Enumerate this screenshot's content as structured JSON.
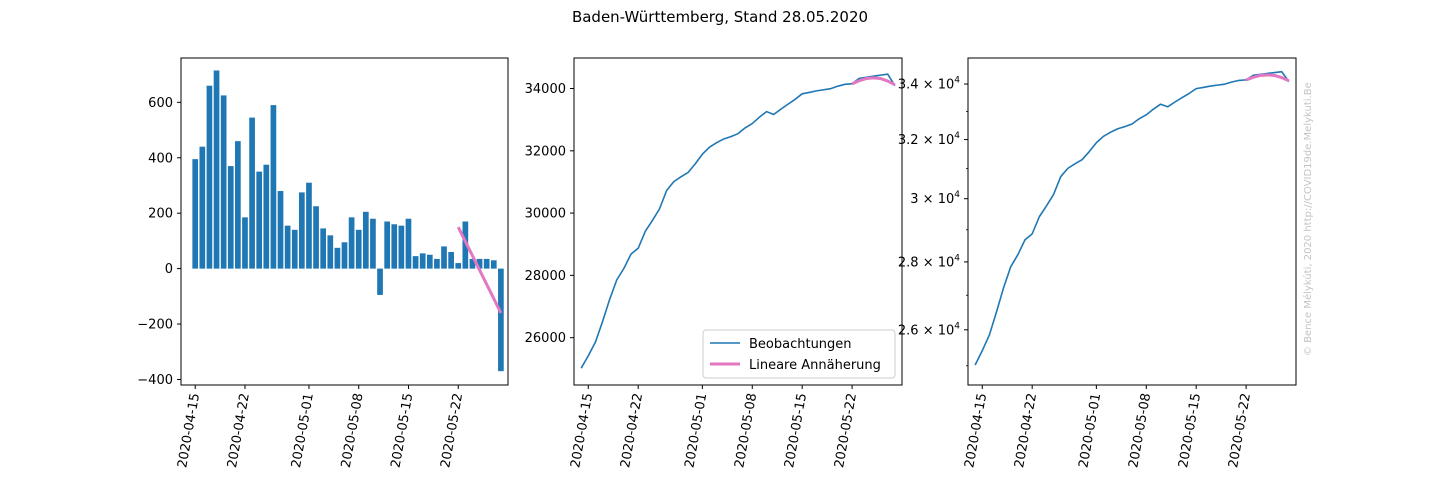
{
  "figure": {
    "title": "Baden-Württemberg, Stand 28.05.2020",
    "watermark": "© Bence Mélykúti, 2020  http://COVID19de.Melykuti.Be",
    "colors": {
      "bar": "#1f77b4",
      "line": "#1f77b4",
      "fit": "#e377c2",
      "axis": "#000000"
    }
  },
  "chart_data": [
    {
      "type": "bar",
      "x": [
        "2020-04-15",
        "2020-04-16",
        "2020-04-17",
        "2020-04-18",
        "2020-04-19",
        "2020-04-20",
        "2020-04-21",
        "2020-04-22",
        "2020-04-23",
        "2020-04-24",
        "2020-04-25",
        "2020-04-26",
        "2020-04-27",
        "2020-04-28",
        "2020-04-29",
        "2020-04-30",
        "2020-05-01",
        "2020-05-02",
        "2020-05-03",
        "2020-05-04",
        "2020-05-05",
        "2020-05-06",
        "2020-05-07",
        "2020-05-08",
        "2020-05-09",
        "2020-05-10",
        "2020-05-11",
        "2020-05-12",
        "2020-05-13",
        "2020-05-14",
        "2020-05-15",
        "2020-05-16",
        "2020-05-17",
        "2020-05-18",
        "2020-05-19",
        "2020-05-20",
        "2020-05-21",
        "2020-05-22",
        "2020-05-23",
        "2020-05-24",
        "2020-05-25",
        "2020-05-26",
        "2020-05-27",
        "2020-05-28"
      ],
      "values": [
        395,
        440,
        660,
        715,
        625,
        370,
        460,
        185,
        545,
        350,
        375,
        590,
        280,
        155,
        140,
        275,
        310,
        225,
        145,
        120,
        75,
        95,
        185,
        140,
        205,
        180,
        -95,
        170,
        160,
        155,
        180,
        45,
        55,
        50,
        35,
        80,
        60,
        20,
        170,
        35,
        35,
        35,
        30,
        -370
      ],
      "fit": {
        "name": "Lineare Annäherung",
        "x": [
          "2020-05-22",
          "2020-05-28"
        ],
        "y": [
          150,
          -160
        ]
      },
      "ylim": [
        -420,
        760
      ],
      "yticks": [
        -400,
        -200,
        0,
        200,
        400,
        600
      ],
      "xlim": [
        "2020-04-13",
        "2020-05-29"
      ],
      "xticks": [
        "2020-04-15",
        "2020-04-22",
        "2020-05-01",
        "2020-05-08",
        "2020-05-15",
        "2020-05-22"
      ],
      "grid": false
    },
    {
      "type": "line",
      "series": [
        {
          "name": "Beobachtungen",
          "x": [
            "2020-04-14",
            "2020-04-15",
            "2020-04-16",
            "2020-04-17",
            "2020-04-18",
            "2020-04-19",
            "2020-04-20",
            "2020-04-21",
            "2020-04-22",
            "2020-04-23",
            "2020-04-24",
            "2020-04-25",
            "2020-04-26",
            "2020-04-27",
            "2020-04-28",
            "2020-04-29",
            "2020-04-30",
            "2020-05-01",
            "2020-05-02",
            "2020-05-03",
            "2020-05-04",
            "2020-05-05",
            "2020-05-06",
            "2020-05-07",
            "2020-05-08",
            "2020-05-09",
            "2020-05-10",
            "2020-05-11",
            "2020-05-12",
            "2020-05-13",
            "2020-05-14",
            "2020-05-15",
            "2020-05-16",
            "2020-05-17",
            "2020-05-18",
            "2020-05-19",
            "2020-05-20",
            "2020-05-21",
            "2020-05-22",
            "2020-05-23",
            "2020-05-24",
            "2020-05-25",
            "2020-05-26",
            "2020-05-27",
            "2020-05-28"
          ],
          "values": [
            25020,
            25415,
            25855,
            26515,
            27230,
            27855,
            28225,
            28685,
            28870,
            29415,
            29765,
            30140,
            30730,
            31010,
            31165,
            31305,
            31580,
            31890,
            32115,
            32260,
            32380,
            32455,
            32550,
            32735,
            32875,
            33080,
            33260,
            33165,
            33335,
            33495,
            33650,
            33830,
            33875,
            33925,
            33960,
            33995,
            34075,
            34135,
            34155,
            34325,
            34360,
            34395,
            34430,
            34460,
            34090
          ]
        },
        {
          "name": "Lineare Annäherung",
          "x": [
            "2020-05-22",
            "2020-05-23",
            "2020-05-24",
            "2020-05-25",
            "2020-05-26",
            "2020-05-27",
            "2020-05-28"
          ],
          "values": [
            34150,
            34250,
            34320,
            34340,
            34320,
            34240,
            34120
          ]
        }
      ],
      "ylim": [
        24480,
        34980
      ],
      "yticks": [
        26000,
        28000,
        30000,
        32000,
        34000
      ],
      "xlim": [
        "2020-04-13",
        "2020-05-29"
      ],
      "xticks": [
        "2020-04-15",
        "2020-04-22",
        "2020-05-01",
        "2020-05-08",
        "2020-05-15",
        "2020-05-22"
      ],
      "legend": "lower-right",
      "grid": false
    },
    {
      "type": "line",
      "yscale": "log",
      "series": [
        {
          "name": "Beobachtungen",
          "x": [
            "2020-04-14",
            "2020-04-15",
            "2020-04-16",
            "2020-04-17",
            "2020-04-18",
            "2020-04-19",
            "2020-04-20",
            "2020-04-21",
            "2020-04-22",
            "2020-04-23",
            "2020-04-24",
            "2020-04-25",
            "2020-04-26",
            "2020-04-27",
            "2020-04-28",
            "2020-04-29",
            "2020-04-30",
            "2020-05-01",
            "2020-05-02",
            "2020-05-03",
            "2020-05-04",
            "2020-05-05",
            "2020-05-06",
            "2020-05-07",
            "2020-05-08",
            "2020-05-09",
            "2020-05-10",
            "2020-05-11",
            "2020-05-12",
            "2020-05-13",
            "2020-05-14",
            "2020-05-15",
            "2020-05-16",
            "2020-05-17",
            "2020-05-18",
            "2020-05-19",
            "2020-05-20",
            "2020-05-21",
            "2020-05-22",
            "2020-05-23",
            "2020-05-24",
            "2020-05-25",
            "2020-05-26",
            "2020-05-27",
            "2020-05-28"
          ],
          "values": [
            25020,
            25415,
            25855,
            26515,
            27230,
            27855,
            28225,
            28685,
            28870,
            29415,
            29765,
            30140,
            30730,
            31010,
            31165,
            31305,
            31580,
            31890,
            32115,
            32260,
            32380,
            32455,
            32550,
            32735,
            32875,
            33080,
            33260,
            33165,
            33335,
            33495,
            33650,
            33830,
            33875,
            33925,
            33960,
            33995,
            34075,
            34135,
            34155,
            34325,
            34360,
            34395,
            34430,
            34460,
            34090
          ]
        },
        {
          "name": "Lineare Annäherung",
          "x": [
            "2020-05-22",
            "2020-05-23",
            "2020-05-24",
            "2020-05-25",
            "2020-05-26",
            "2020-05-27",
            "2020-05-28"
          ],
          "values": [
            34150,
            34250,
            34320,
            34340,
            34320,
            34240,
            34120
          ]
        }
      ],
      "ylim": [
        24480,
        34980
      ],
      "ytick_labels": [
        {
          "value": 26000,
          "base": "2.6 × 10",
          "exp": "4"
        },
        {
          "value": 28000,
          "base": "2.8 × 10",
          "exp": "4"
        },
        {
          "value": 30000,
          "base": "3 × 10",
          "exp": "4"
        },
        {
          "value": 32000,
          "base": "3.2 × 10",
          "exp": "4"
        },
        {
          "value": 34000,
          "base": "3.4 × 10",
          "exp": "4"
        }
      ],
      "xlim": [
        "2020-04-13",
        "2020-05-29"
      ],
      "xticks": [
        "2020-04-15",
        "2020-04-22",
        "2020-05-01",
        "2020-05-08",
        "2020-05-15",
        "2020-05-22"
      ],
      "grid": false
    }
  ]
}
